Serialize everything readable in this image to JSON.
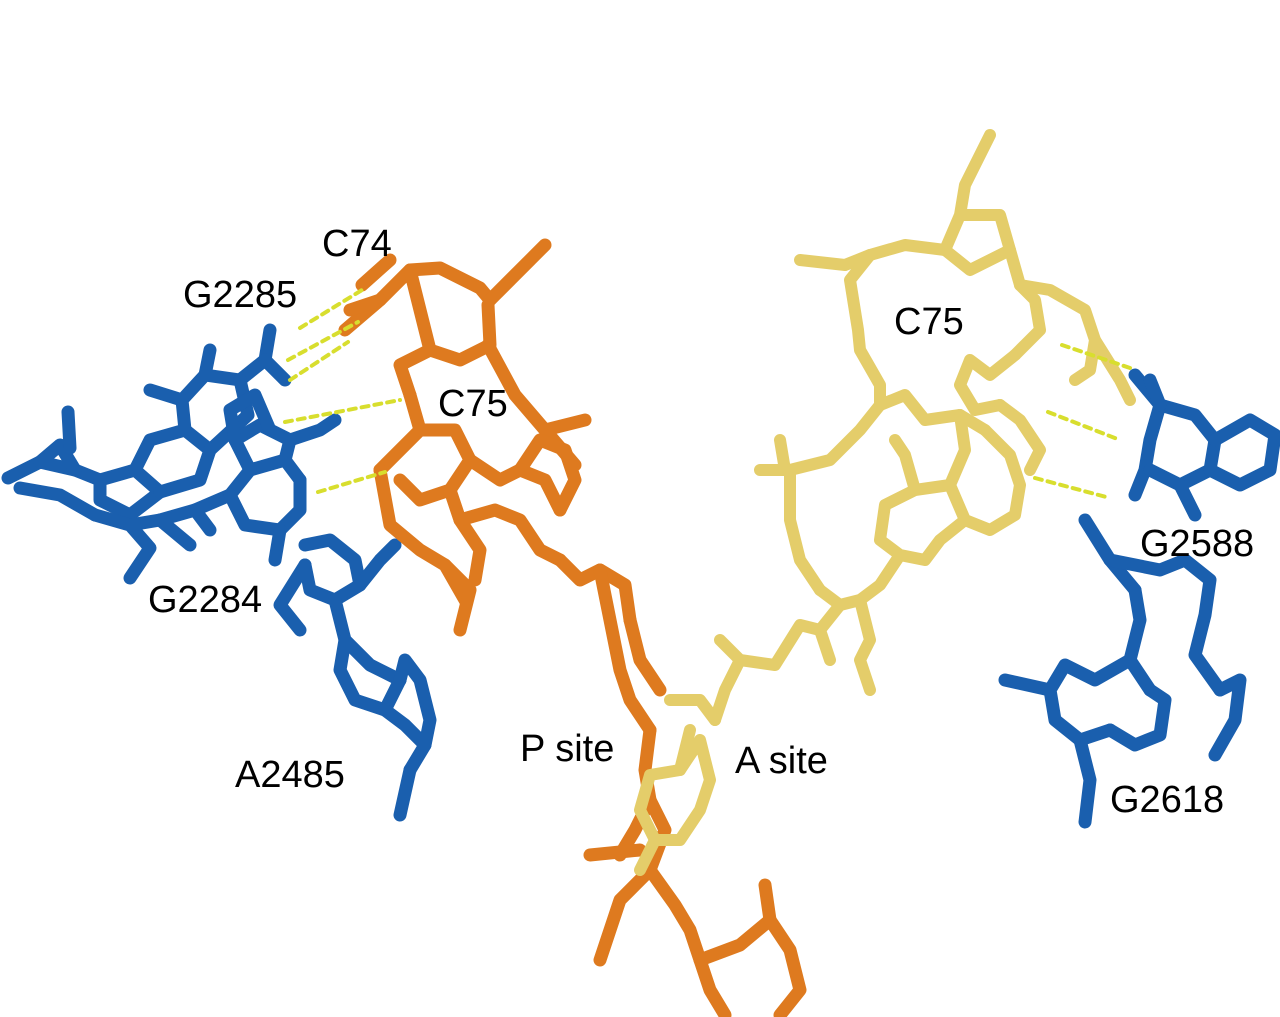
{
  "figure": {
    "colors": {
      "ribosome_rna": "#1a5fae",
      "p_site_trna": "#de7a1f",
      "a_site_trna": "#e4cd6a",
      "hydrogen_bond": "#d8de2e",
      "label_text": "#000000"
    },
    "labels": {
      "c74": "C74",
      "g2285": "G2285",
      "c75_p": "C75",
      "g2284": "G2284",
      "a2485": "A2485",
      "p_site": "P site",
      "a_site": "A site",
      "c75_a": "C75",
      "g2588": "G2588",
      "g2618": "G2618"
    }
  }
}
